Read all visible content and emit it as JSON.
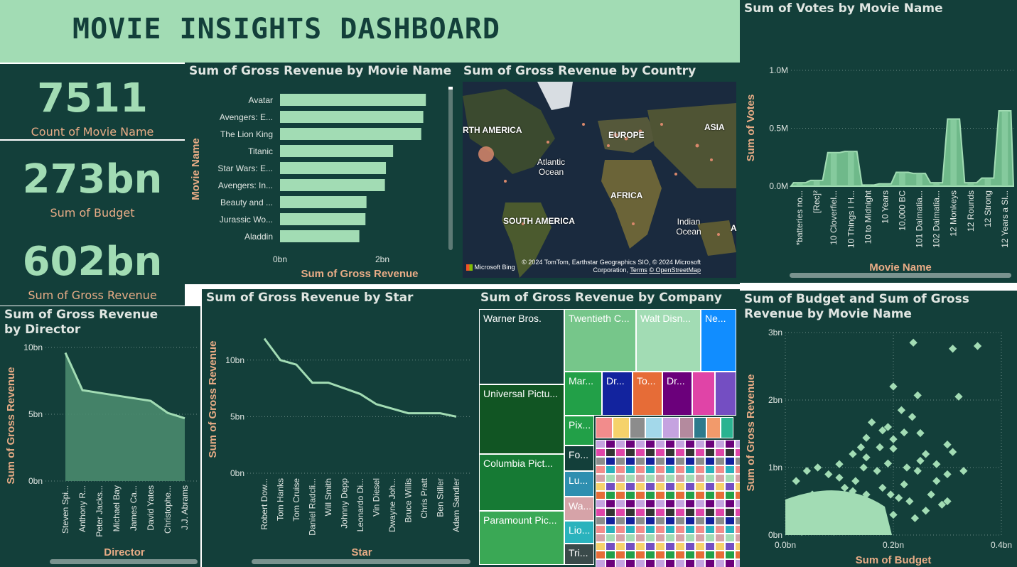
{
  "header": {
    "title": "MOVIE INSIGHTS DASHBOARD"
  },
  "kpis": [
    {
      "value": "7511",
      "label": "Count of Movie Name"
    },
    {
      "value": "273bn",
      "label": "Sum of Budget"
    },
    {
      "value": "602bn",
      "label": "Sum of Gross Revenue"
    }
  ],
  "colors": {
    "panel_bg": "#133f3a",
    "accent": "#a2dcb4",
    "label": "#e8ac86",
    "text": "#e0e6e2"
  },
  "map": {
    "title": "Sum of Gross Revenue by Country",
    "labels": [
      "RTH AMERICA",
      "EUROPE",
      "ASIA",
      "Atlantic Ocean",
      "AFRICA",
      "SOUTH AMERICA",
      "Indian Ocean",
      "A"
    ],
    "attribution": "© 2024 TomTom, Earthstar Geographics SIO, © 2024 Microsoft Corporation,",
    "terms": "Terms",
    "osm": "© OpenStreetMap",
    "bing": "Microsoft Bing"
  },
  "treemap": {
    "title": "Sum of Gross Revenue by Company",
    "cells": [
      "Warner Bros.",
      "Universal Pictu...",
      "Columbia Pict...",
      "Paramount Pic...",
      "Twentieth C...",
      "Walt Disn...",
      "Ne...",
      "Mar...",
      "Dr...",
      "To...",
      "Dr...",
      "Pix...",
      "Fo...",
      "Lu...",
      "Wa...",
      "Lio...",
      "Tri..."
    ]
  },
  "chart_data": [
    {
      "type": "bar",
      "orientation": "horizontal",
      "title": "Sum of Gross Revenue by Movie Name",
      "xlabel": "Sum of Gross Revenue",
      "ylabel": "Movie Name",
      "categories": [
        "Avatar",
        "Avengers: E...",
        "The Lion King",
        "Titanic",
        "Star Wars: E...",
        "Avengers: In...",
        "Beauty and ...",
        "Jurassic Wo...",
        "Aladdin"
      ],
      "values": [
        2.85,
        2.8,
        2.76,
        2.21,
        2.07,
        2.05,
        1.69,
        1.67,
        1.55
      ],
      "xticks": [
        "0bn",
        "2bn"
      ],
      "xlim": [
        0,
        3
      ]
    },
    {
      "type": "area",
      "title": "Sum of Votes by Movie Name",
      "xlabel": "Movie Name",
      "ylabel": "Sum of Votes",
      "categories": [
        "*batteries no...",
        "[Rec]²",
        "10 Cloverfiel...",
        "10 Things I H...",
        "10 to Midnight",
        "10 Years",
        "10,000 BC",
        "101 Dalmatia...",
        "102 Dalmatia...",
        "12 Monkeys",
        "12 Rounds",
        "12 Strong",
        "12 Years a Sl..."
      ],
      "values": [
        0.03,
        0.05,
        0.29,
        0.3,
        0.01,
        0.02,
        0.12,
        0.11,
        0.03,
        0.58,
        0.03,
        0.07,
        0.65
      ],
      "yticks": [
        "0.0M",
        "0.5M",
        "1.0M"
      ],
      "ylim": [
        0,
        1.0
      ]
    },
    {
      "type": "area",
      "title": "Sum of Gross Revenue by Director",
      "xlabel": "Director",
      "ylabel": "Sum of Gross Revenue",
      "categories": [
        "Steven Spi...",
        "Anthony R...",
        "Peter Jacks...",
        "Michael Bay",
        "James Ca...",
        "David Yates",
        "Christophe...",
        "J.J. Abrams"
      ],
      "values": [
        9.6,
        6.8,
        6.6,
        6.4,
        6.2,
        6.0,
        5.1,
        4.7
      ],
      "yticks": [
        "0bn",
        "5bn",
        "10bn"
      ],
      "ylim": [
        0,
        10
      ]
    },
    {
      "type": "line",
      "title": "Sum of Gross Revenue by Star",
      "xlabel": "Star",
      "ylabel": "Sum of Gross Revenue",
      "categories": [
        "Robert Dow...",
        "Tom Hanks",
        "Tom Cruise",
        "Daniel Radcli...",
        "Will Smith",
        "Johnny Depp",
        "Leonardo Di...",
        "Vin Diesel",
        "Dwayne Joh...",
        "Bruce Willis",
        "Chris Pratt",
        "Ben Stiller",
        "Adam Sandler"
      ],
      "values": [
        11.9,
        10.0,
        9.6,
        8.0,
        8.0,
        7.5,
        7.0,
        6.1,
        5.7,
        5.3,
        5.3,
        5.3,
        5.0
      ],
      "yticks": [
        "0bn",
        "5bn",
        "10bn"
      ],
      "ylim": [
        0,
        13
      ]
    },
    {
      "type": "scatter",
      "title": "Sum of Budget and Sum of Gross Revenue by Movie Name",
      "xlabel": "Sum of Budget",
      "ylabel": "Sum of Gross Revenue",
      "xticks": [
        "0.0bn",
        "0.2bn",
        "0.4bn"
      ],
      "yticks": [
        "0bn",
        "1bn",
        "2bn",
        "3bn"
      ],
      "xlim": [
        0,
        0.4
      ],
      "ylim": [
        0,
        3
      ],
      "points": [
        [
          0.237,
          2.85
        ],
        [
          0.356,
          2.8
        ],
        [
          0.31,
          2.76
        ],
        [
          0.2,
          2.2
        ],
        [
          0.245,
          2.07
        ],
        [
          0.321,
          2.05
        ],
        [
          0.16,
          1.67
        ],
        [
          0.18,
          1.55
        ],
        [
          0.25,
          1.51
        ],
        [
          0.3,
          1.34
        ],
        [
          0.22,
          1.52
        ],
        [
          0.2,
          1.42
        ],
        [
          0.15,
          1.44
        ],
        [
          0.26,
          1.2
        ],
        [
          0.3,
          0.9
        ],
        [
          0.28,
          0.8
        ],
        [
          0.25,
          1.1
        ],
        [
          0.2,
          1.28
        ],
        [
          0.14,
          1.3
        ],
        [
          0.125,
          1.2
        ],
        [
          0.1,
          1.05
        ],
        [
          0.15,
          1.15
        ],
        [
          0.26,
          0.36
        ],
        [
          0.29,
          0.45
        ],
        [
          0.18,
          0.7
        ],
        [
          0.22,
          0.75
        ],
        [
          0.17,
          0.95
        ],
        [
          0.23,
          0.5
        ],
        [
          0.27,
          0.6
        ],
        [
          0.19,
          1.06
        ],
        [
          0.245,
          0.95
        ],
        [
          0.08,
          0.9
        ],
        [
          0.06,
          1.0
        ],
        [
          0.04,
          0.95
        ],
        [
          0.11,
          0.7
        ],
        [
          0.09,
          0.6
        ],
        [
          0.13,
          0.8
        ],
        [
          0.15,
          0.6
        ],
        [
          0.12,
          0.5
        ],
        [
          0.07,
          0.55
        ],
        [
          0.05,
          0.6
        ],
        [
          0.03,
          0.4
        ],
        [
          0.1,
          0.4
        ],
        [
          0.16,
          0.45
        ],
        [
          0.2,
          0.3
        ],
        [
          0.12,
          0.12
        ],
        [
          0.24,
          0.25
        ],
        [
          0.3,
          0.5
        ],
        [
          0.33,
          0.95
        ],
        [
          0.02,
          0.8
        ],
        [
          0.01,
          0.3
        ],
        [
          0.015,
          0.15
        ],
        [
          0.06,
          0.3
        ],
        [
          0.08,
          0.2
        ],
        [
          0.14,
          0.25
        ],
        [
          0.18,
          0.2
        ],
        [
          0.21,
          0.55
        ],
        [
          0.1,
          0.85
        ],
        [
          0.05,
          0.25
        ],
        [
          0.07,
          0.1
        ],
        [
          0.03,
          0.05
        ],
        [
          0.09,
          0.05
        ],
        [
          0.04,
          0.2
        ],
        [
          0.11,
          0.3
        ],
        [
          0.13,
          0.15
        ],
        [
          0.165,
          0.35
        ],
        [
          0.195,
          0.6
        ],
        [
          0.225,
          1.0
        ],
        [
          0.28,
          1.05
        ],
        [
          0.31,
          1.23
        ],
        [
          0.235,
          1.75
        ],
        [
          0.215,
          1.85
        ],
        [
          0.19,
          1.6
        ],
        [
          0.175,
          1.3
        ],
        [
          0.145,
          1.0
        ],
        [
          0.125,
          0.65
        ]
      ]
    }
  ]
}
